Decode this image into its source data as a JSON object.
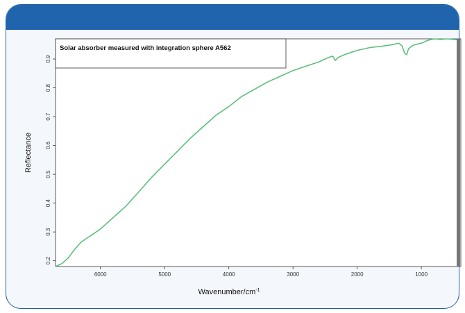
{
  "chart_data": {
    "type": "line",
    "title": "",
    "xlabel": "Wavenumber/cm",
    "xlabel_sup": "-1",
    "ylabel": "Reflectance",
    "xlim": [
      6700,
      450
    ],
    "ylim": [
      0.18,
      0.97
    ],
    "x_ticks": [
      6000,
      5000,
      4000,
      3000,
      2000,
      1000
    ],
    "y_ticks": [
      0.2,
      0.3,
      0.4,
      0.5,
      0.6,
      0.7,
      0.8,
      0.9
    ],
    "legend": {
      "placement": "top-left",
      "text": "Solar absorber measured with integration sphere A562"
    },
    "grid": false,
    "series": [
      {
        "color": "#5bbf7a",
        "x": [
          6700,
          6600,
          6500,
          6400,
          6300,
          6200,
          6100,
          6000,
          5800,
          5600,
          5400,
          5200,
          5000,
          4800,
          4600,
          4400,
          4200,
          4000,
          3800,
          3600,
          3400,
          3200,
          3000,
          2800,
          2600,
          2450,
          2380,
          2340,
          2300,
          2200,
          2000,
          1800,
          1600,
          1450,
          1350,
          1300,
          1260,
          1230,
          1200,
          1150,
          1100,
          1000,
          900,
          800,
          700,
          600,
          500,
          450
        ],
        "y": [
          0.18,
          0.19,
          0.21,
          0.24,
          0.265,
          0.28,
          0.295,
          0.31,
          0.35,
          0.39,
          0.44,
          0.49,
          0.535,
          0.58,
          0.625,
          0.665,
          0.705,
          0.735,
          0.77,
          0.795,
          0.82,
          0.84,
          0.86,
          0.875,
          0.89,
          0.905,
          0.91,
          0.895,
          0.905,
          0.915,
          0.93,
          0.94,
          0.945,
          0.95,
          0.955,
          0.945,
          0.92,
          0.915,
          0.935,
          0.945,
          0.95,
          0.955,
          0.965,
          0.97,
          0.968,
          0.97,
          0.968,
          0.967
        ]
      }
    ]
  }
}
